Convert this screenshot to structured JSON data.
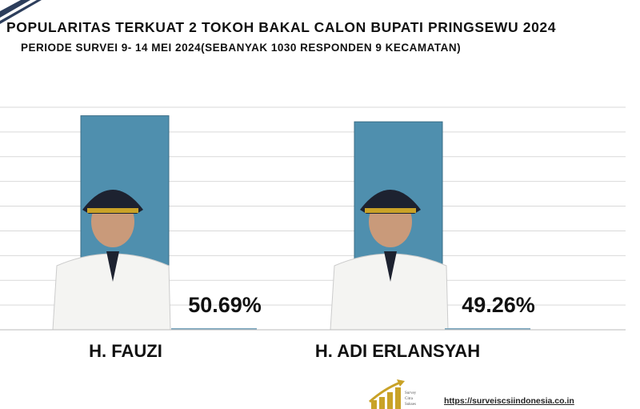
{
  "chart_data": {
    "type": "bar",
    "title": "POPULARITAS TERKUAT 2 TOKOH BAKAL CALON BUPATI PRINGSEWU 2024",
    "subtitle": "PERIODE SURVEI 9- 14 MEI 2024(SEBANYAK 1030 RESPONDEN 9 KECAMATAN)",
    "categories": [
      "H. FAUZI",
      "H. ADI ERLANSYAH"
    ],
    "values": [
      50.69,
      49.26
    ],
    "value_labels": [
      "50.69%",
      "49.26%"
    ],
    "ylim": [
      0,
      52.7
    ],
    "grid": true,
    "bar_color": "#4f8fae",
    "grid_color": "#d9d9d9"
  },
  "footer": {
    "url": "https://surveiscsiindonesia.co.in",
    "logo_text": "Survey Citra Sukses"
  },
  "colors": {
    "corner_stripe": "#2d3e5c",
    "logo_gold": "#c9a227"
  }
}
